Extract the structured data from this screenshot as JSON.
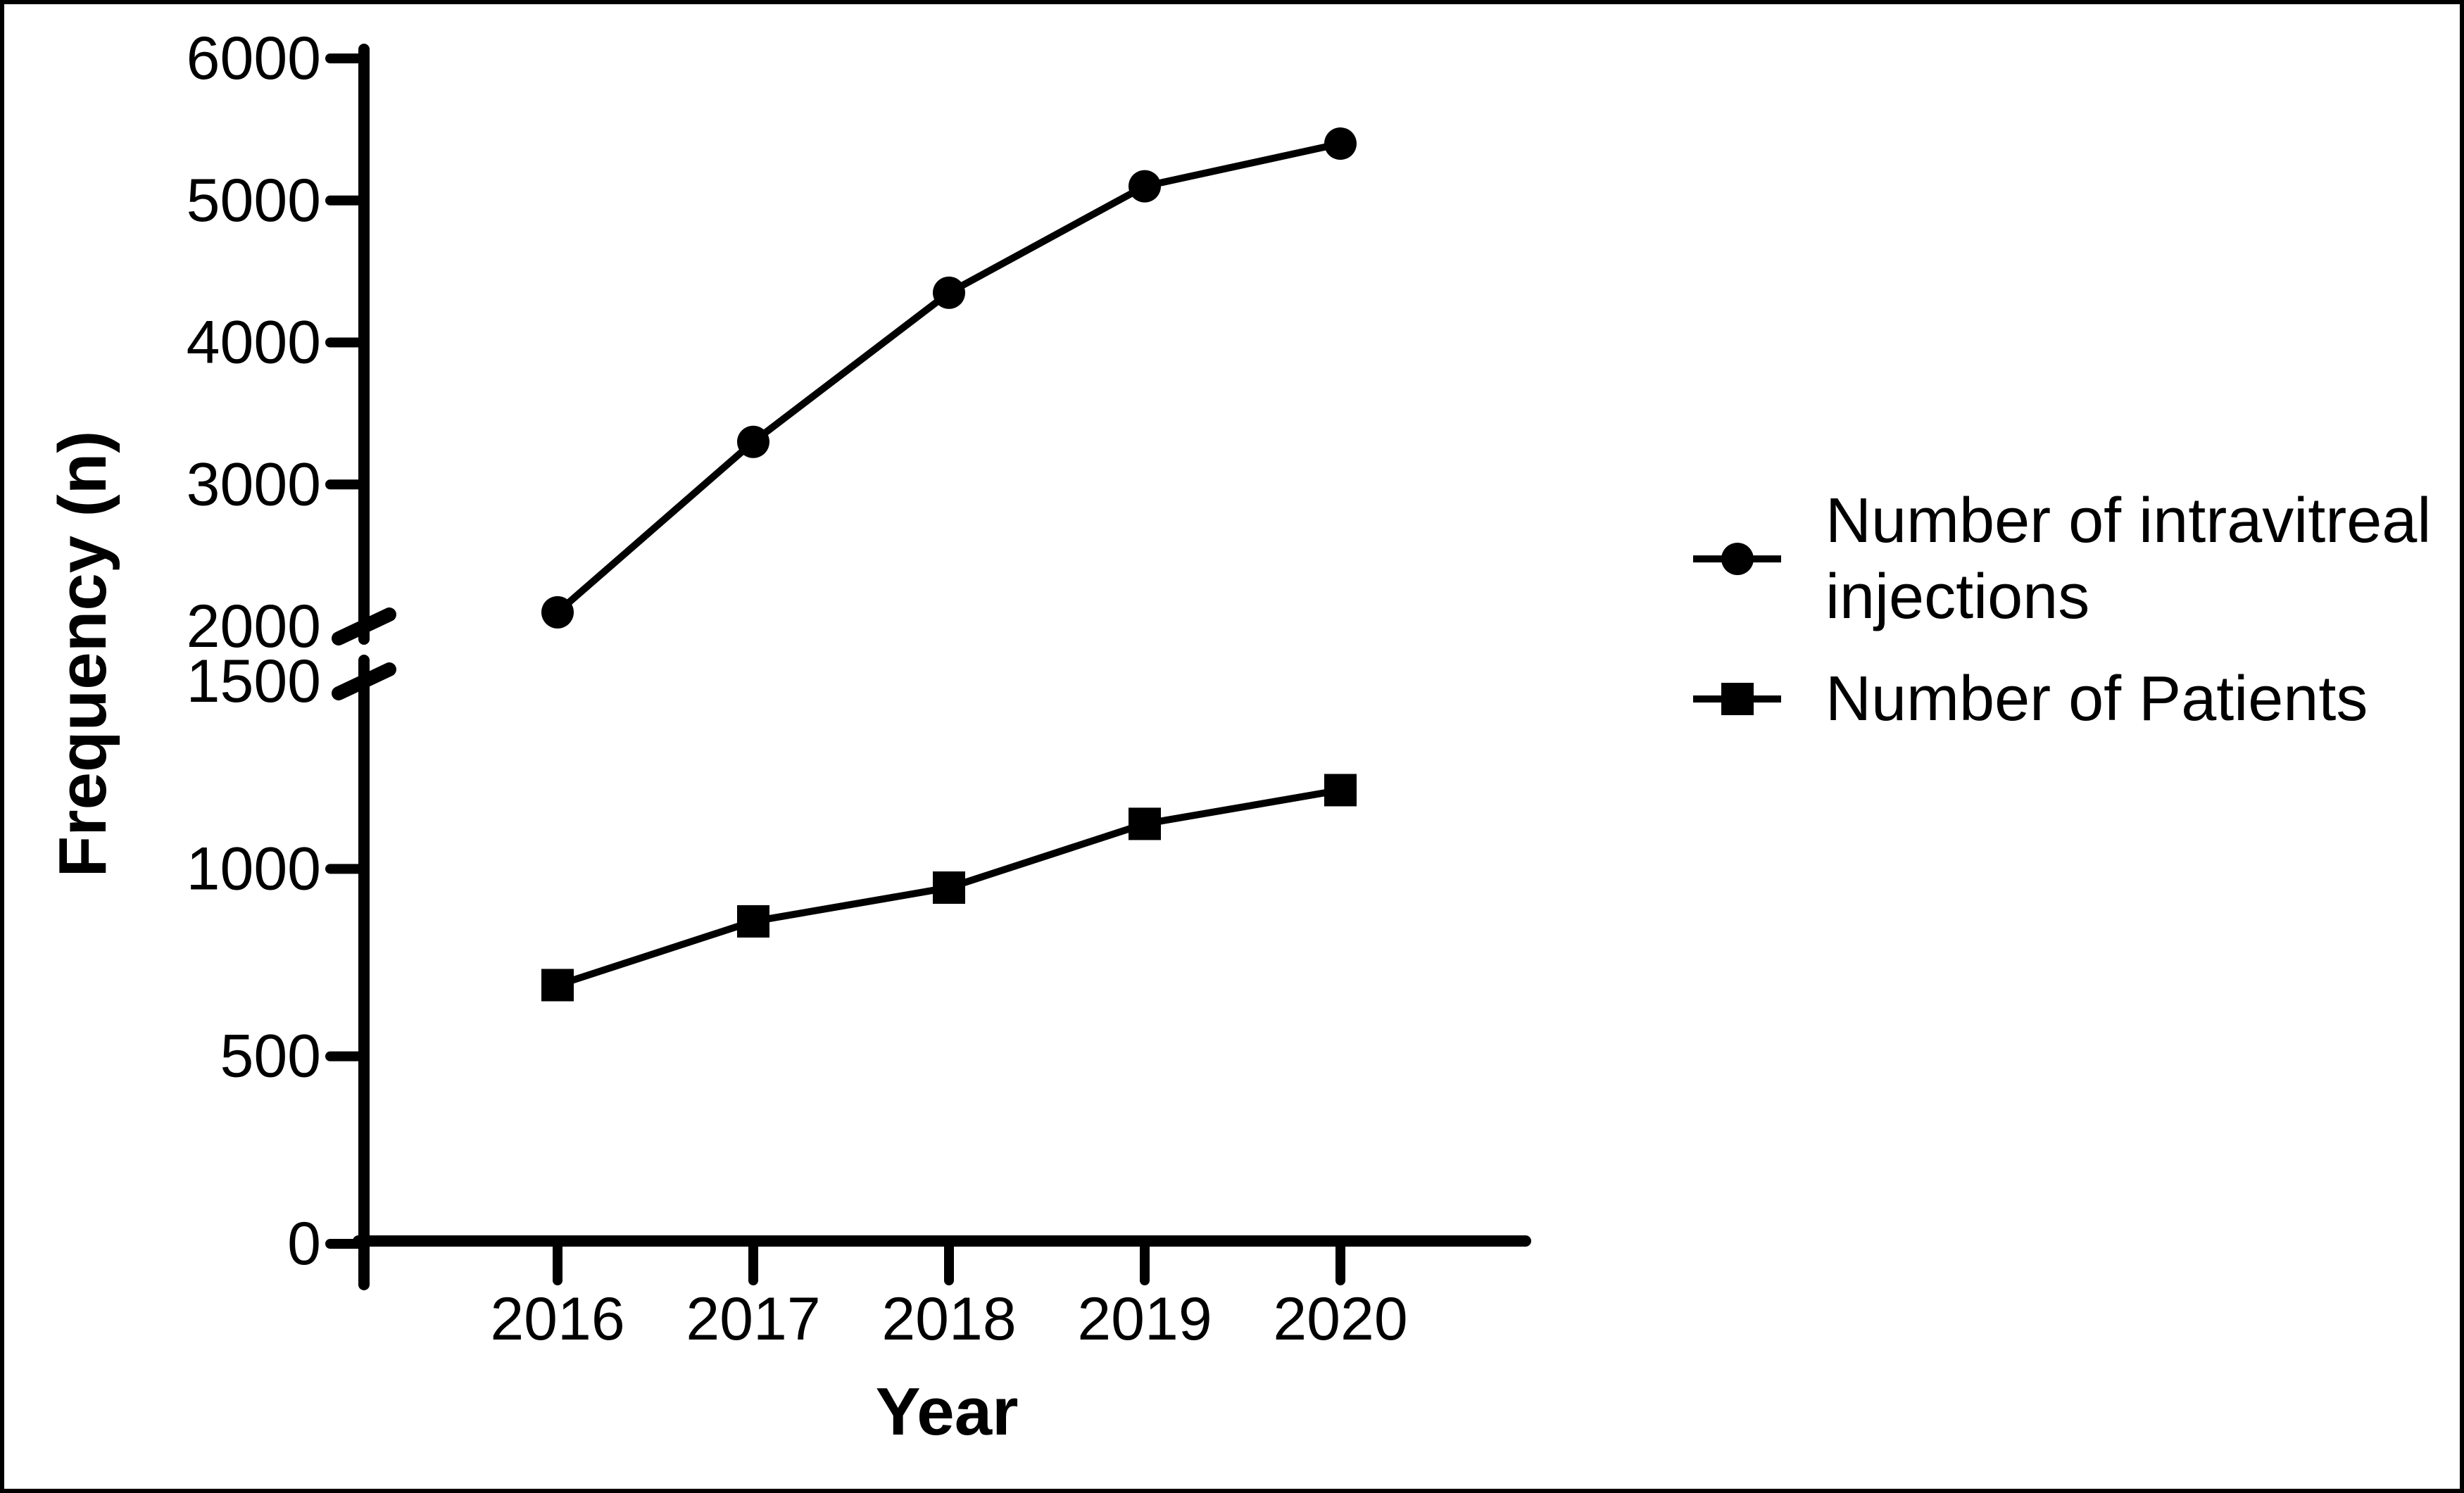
{
  "figure": {
    "background": "#ffffff",
    "frame_color": "#000000",
    "ink_color": "#000000"
  },
  "chart_data": {
    "type": "line",
    "title": "",
    "xlabel": "Year",
    "ylabel": "Frequency (n)",
    "x": [
      2016,
      2017,
      2018,
      2019,
      2020
    ],
    "x_tick_labels": [
      "2016",
      "2017",
      "2018",
      "2019",
      "2020"
    ],
    "y_axis": {
      "broken": true,
      "upper_segment": {
        "range": [
          2000,
          6000
        ],
        "ticks": [
          6000,
          5000,
          4000,
          3000,
          2000
        ]
      },
      "lower_segment": {
        "range": [
          0,
          1500
        ],
        "ticks": [
          1500,
          1000,
          500,
          0
        ]
      }
    },
    "series": [
      {
        "name": "Number of intravitreal injections",
        "legend_lines": [
          "Number of intravitreal",
          "injections"
        ],
        "marker": "circle",
        "color": "#000000",
        "values": [
          2100,
          3300,
          4350,
          5100,
          5400
        ]
      },
      {
        "name": "Number of Patients",
        "legend_lines": [
          "Number of Patients"
        ],
        "marker": "square",
        "color": "#000000",
        "values": [
          690,
          860,
          950,
          1120,
          1210
        ]
      }
    ],
    "legend_position": "right",
    "grid": false
  }
}
